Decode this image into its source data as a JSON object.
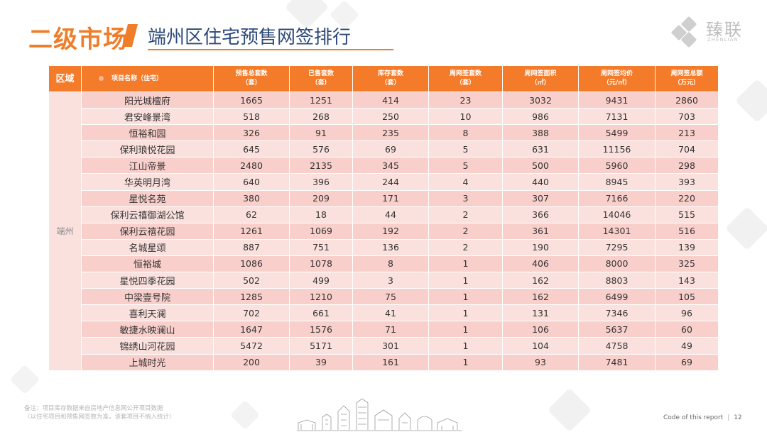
{
  "header": {
    "section_title": "二级市场",
    "page_title": "端州区住宅预售网签排行"
  },
  "logo": {
    "name_cn": "臻联",
    "name_en": "ZHENLIAN"
  },
  "table": {
    "columns": [
      "区域",
      "项目名称（住宅）",
      "预售总套数\n（套）",
      "已售套数\n（套）",
      "库存套数\n（套）",
      "周网签套数\n（套）",
      "周网签面积\n（㎡）",
      "周网签均价\n（元/㎡）",
      "周网签总额\n（万元）"
    ],
    "region": "端州",
    "rows": [
      [
        "阳光城檀府",
        "1665",
        "1251",
        "414",
        "23",
        "3032",
        "9431",
        "2860"
      ],
      [
        "君安峰景湾",
        "518",
        "268",
        "250",
        "10",
        "986",
        "7131",
        "703"
      ],
      [
        "恒裕和园",
        "326",
        "91",
        "235",
        "8",
        "388",
        "5499",
        "213"
      ],
      [
        "保利琅悦花园",
        "645",
        "576",
        "69",
        "5",
        "631",
        "11156",
        "704"
      ],
      [
        "江山帝景",
        "2480",
        "2135",
        "345",
        "5",
        "500",
        "5960",
        "298"
      ],
      [
        "华英明月湾",
        "640",
        "396",
        "244",
        "4",
        "440",
        "8945",
        "393"
      ],
      [
        "星悦名苑",
        "380",
        "209",
        "171",
        "3",
        "307",
        "7166",
        "220"
      ],
      [
        "保利云禧御湖公馆",
        "62",
        "18",
        "44",
        "2",
        "366",
        "14046",
        "515"
      ],
      [
        "保利云禧花园",
        "1261",
        "1069",
        "192",
        "2",
        "361",
        "14301",
        "516"
      ],
      [
        "名城星颂",
        "887",
        "751",
        "136",
        "2",
        "190",
        "7295",
        "139"
      ],
      [
        "恒裕城",
        "1086",
        "1078",
        "8",
        "1",
        "406",
        "8000",
        "325"
      ],
      [
        "星悦四季花园",
        "502",
        "499",
        "3",
        "1",
        "162",
        "8803",
        "143"
      ],
      [
        "中梁壹号院",
        "1285",
        "1210",
        "75",
        "1",
        "162",
        "6499",
        "105"
      ],
      [
        "喜利天澜",
        "702",
        "661",
        "41",
        "1",
        "131",
        "7346",
        "96"
      ],
      [
        "敏捷水映澜山",
        "1647",
        "1576",
        "71",
        "1",
        "106",
        "5637",
        "60"
      ],
      [
        "锦绣山河花园",
        "5472",
        "5171",
        "301",
        "1",
        "104",
        "4758",
        "49"
      ],
      [
        "上城时光",
        "200",
        "39",
        "161",
        "1",
        "93",
        "7481",
        "69"
      ]
    ]
  },
  "footer": {
    "note_line1": "备注：项目库存数据来自房地产信息网公开项目数据",
    "note_line2": "（以住宅项目和预售网签数为准，该套项目不纳入统计）",
    "code_label": "Code of this report",
    "page_number": "12"
  },
  "colors": {
    "accent": "#ef7d2a",
    "header_bg": "#f37b2a",
    "row_dark": "#f9cfcb",
    "row_light": "#fbe1de",
    "title_blue": "#2e4a7a"
  }
}
